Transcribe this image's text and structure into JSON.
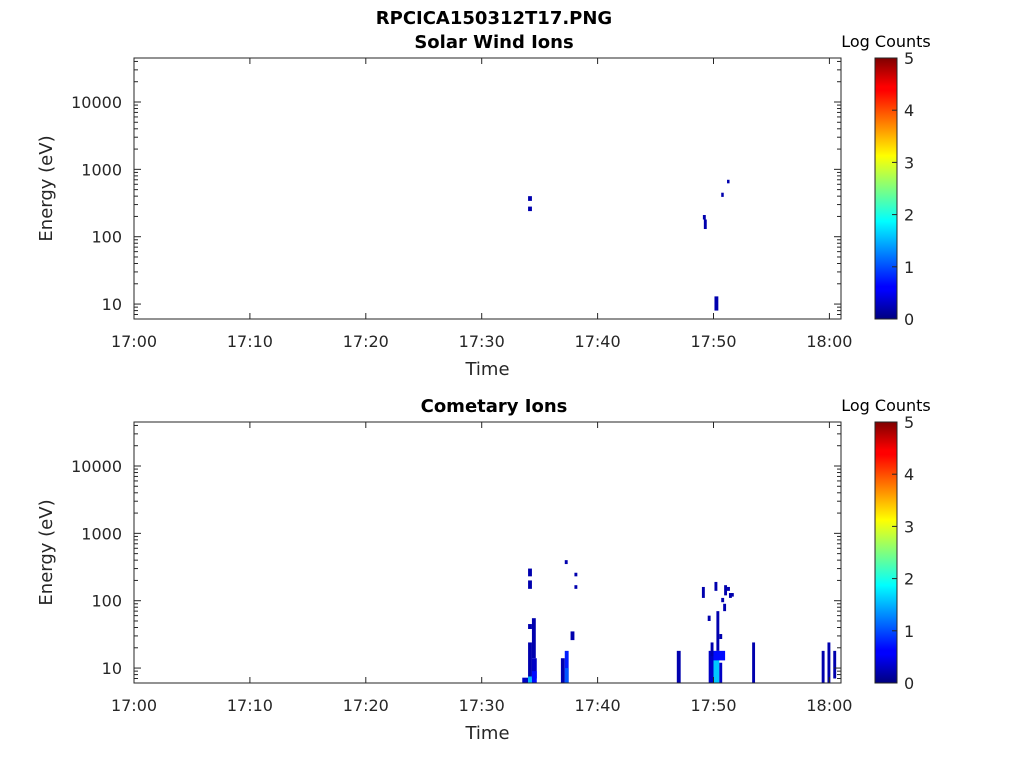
{
  "figure_title": "RPCICA150312T17.PNG",
  "chart_data": [
    {
      "type": "heatmap",
      "title": "Solar Wind Ions",
      "xlabel": "Time",
      "ylabel": "Energy (eV)",
      "yscale": "log",
      "xlim": [
        "17:00",
        "18:01"
      ],
      "ylim": [
        6,
        45000
      ],
      "xticks": [
        "17:00",
        "17:10",
        "17:20",
        "17:30",
        "17:40",
        "17:50",
        "18:00"
      ],
      "yticks": [
        "10",
        "100",
        "1000",
        "10000"
      ],
      "colorbar": {
        "label": "Log Counts",
        "range": [
          0,
          5
        ],
        "ticks": [
          "0",
          "1",
          "2",
          "3",
          "4",
          "5"
        ],
        "colormap": "jet"
      },
      "cells": [
        {
          "t0": "17:34:00",
          "t1": "17:34:20",
          "e0": 340,
          "e1": 400,
          "v": 0.2
        },
        {
          "t0": "17:34:00",
          "t1": "17:34:20",
          "e0": 240,
          "e1": 280,
          "v": 0.2
        },
        {
          "t0": "17:49:05",
          "t1": "17:49:20",
          "e0": 180,
          "e1": 210,
          "v": 0.2
        },
        {
          "t0": "17:49:10",
          "t1": "17:49:25",
          "e0": 130,
          "e1": 180,
          "v": 0.2
        },
        {
          "t0": "17:50:05",
          "t1": "17:50:25",
          "e0": 8,
          "e1": 13,
          "v": 0.2
        },
        {
          "t0": "17:50:40",
          "t1": "17:50:52",
          "e0": 390,
          "e1": 450,
          "v": 0.2
        },
        {
          "t0": "17:51:10",
          "t1": "17:51:22",
          "e0": 620,
          "e1": 700,
          "v": 0.2
        }
      ]
    },
    {
      "type": "heatmap",
      "title": "Cometary Ions",
      "xlabel": "Time",
      "ylabel": "Energy (eV)",
      "yscale": "log",
      "xlim": [
        "17:00",
        "18:01"
      ],
      "ylim": [
        6,
        45000
      ],
      "xticks": [
        "17:00",
        "17:10",
        "17:20",
        "17:30",
        "17:40",
        "17:50",
        "18:00"
      ],
      "yticks": [
        "10",
        "100",
        "1000",
        "10000"
      ],
      "colorbar": {
        "label": "Log Counts",
        "range": [
          0,
          5
        ],
        "ticks": [
          "0",
          "1",
          "2",
          "3",
          "4",
          "5"
        ],
        "colormap": "jet"
      },
      "cells": [
        {
          "t0": "17:33:30",
          "t1": "17:34:00",
          "e0": 6,
          "e1": 7.2,
          "v": 0.3
        },
        {
          "t0": "17:34:00",
          "t1": "17:34:20",
          "e0": 7,
          "e1": 24,
          "v": 0.2
        },
        {
          "t0": "17:34:20",
          "t1": "17:34:45",
          "e0": 7,
          "e1": 14,
          "v": 0.3
        },
        {
          "t0": "17:34:00",
          "t1": "17:34:20",
          "e0": 6,
          "e1": 7.5,
          "v": 1.5
        },
        {
          "t0": "17:34:20",
          "t1": "17:34:45",
          "e0": 6,
          "e1": 9,
          "v": 0.6
        },
        {
          "t0": "17:34:20",
          "t1": "17:34:40",
          "e0": 14,
          "e1": 55,
          "v": 0.2
        },
        {
          "t0": "17:34:00",
          "t1": "17:34:20",
          "e0": 38,
          "e1": 45,
          "v": 0.2
        },
        {
          "t0": "17:34:00",
          "t1": "17:34:20",
          "e0": 150,
          "e1": 200,
          "v": 0.2
        },
        {
          "t0": "17:34:00",
          "t1": "17:34:20",
          "e0": 230,
          "e1": 300,
          "v": 0.2
        },
        {
          "t0": "17:36:50",
          "t1": "17:37:10",
          "e0": 6,
          "e1": 14,
          "v": 0.2
        },
        {
          "t0": "17:37:10",
          "t1": "17:37:30",
          "e0": 6,
          "e1": 18,
          "v": 0.7
        },
        {
          "t0": "17:37:10",
          "t1": "17:37:30",
          "e0": 6,
          "e1": 10,
          "v": 1.0
        },
        {
          "t0": "17:37:40",
          "t1": "17:38:00",
          "e0": 26,
          "e1": 35,
          "v": 0.2
        },
        {
          "t0": "17:37:10",
          "t1": "17:37:25",
          "e0": 350,
          "e1": 400,
          "v": 0.2
        },
        {
          "t0": "17:38:00",
          "t1": "17:38:15",
          "e0": 230,
          "e1": 260,
          "v": 0.2
        },
        {
          "t0": "17:38:00",
          "t1": "17:38:15",
          "e0": 150,
          "e1": 170,
          "v": 0.2
        },
        {
          "t0": "17:46:50",
          "t1": "17:47:10",
          "e0": 6,
          "e1": 18,
          "v": 0.2
        },
        {
          "t0": "17:49:00",
          "t1": "17:49:15",
          "e0": 110,
          "e1": 160,
          "v": 0.2
        },
        {
          "t0": "17:49:30",
          "t1": "17:49:45",
          "e0": 50,
          "e1": 60,
          "v": 0.2
        },
        {
          "t0": "17:49:35",
          "t1": "17:50:00",
          "e0": 6,
          "e1": 18,
          "v": 0.3
        },
        {
          "t0": "17:49:45",
          "t1": "17:50:00",
          "e0": 15,
          "e1": 24,
          "v": 0.2
        },
        {
          "t0": "17:50:00",
          "t1": "17:50:30",
          "e0": 6,
          "e1": 14,
          "v": 1.6
        },
        {
          "t0": "17:50:00",
          "t1": "17:51:00",
          "e0": 13,
          "e1": 18,
          "v": 0.6
        },
        {
          "t0": "17:50:15",
          "t1": "17:50:30",
          "e0": 18,
          "e1": 70,
          "v": 0.2
        },
        {
          "t0": "17:50:30",
          "t1": "17:50:45",
          "e0": 6,
          "e1": 12,
          "v": 0.3
        },
        {
          "t0": "17:50:30",
          "t1": "17:50:45",
          "e0": 27,
          "e1": 32,
          "v": 0.2
        },
        {
          "t0": "17:50:05",
          "t1": "17:50:20",
          "e0": 140,
          "e1": 190,
          "v": 0.2
        },
        {
          "t0": "17:50:40",
          "t1": "17:50:55",
          "e0": 95,
          "e1": 110,
          "v": 0.2
        },
        {
          "t0": "17:50:55",
          "t1": "17:51:10",
          "e0": 120,
          "e1": 170,
          "v": 0.2
        },
        {
          "t0": "17:51:10",
          "t1": "17:51:25",
          "e0": 140,
          "e1": 160,
          "v": 0.2
        },
        {
          "t0": "17:51:20",
          "t1": "17:51:35",
          "e0": 110,
          "e1": 130,
          "v": 0.2
        },
        {
          "t0": "17:50:50",
          "t1": "17:51:05",
          "e0": 70,
          "e1": 90,
          "v": 0.2
        },
        {
          "t0": "17:51:30",
          "t1": "17:51:45",
          "e0": 115,
          "e1": 130,
          "v": 0.2
        },
        {
          "t0": "17:53:20",
          "t1": "17:53:35",
          "e0": 6,
          "e1": 24,
          "v": 0.2
        },
        {
          "t0": "17:59:20",
          "t1": "17:59:35",
          "e0": 6,
          "e1": 18,
          "v": 0.2
        },
        {
          "t0": "17:59:50",
          "t1": "18:00:05",
          "e0": 6,
          "e1": 24,
          "v": 0.2
        },
        {
          "t0": "18:00:20",
          "t1": "18:00:35",
          "e0": 7,
          "e1": 18,
          "v": 0.2
        }
      ]
    }
  ]
}
